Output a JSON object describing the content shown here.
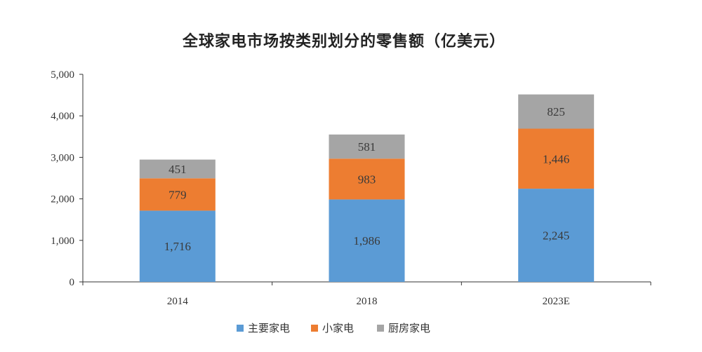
{
  "chart_data": {
    "type": "bar",
    "stacked": true,
    "title": "全球家电市场按类别划分的零售额（亿美元）",
    "categories": [
      "2014",
      "2018",
      "2023E"
    ],
    "series": [
      {
        "name": "主要家电",
        "values": [
          1716,
          1986,
          2245
        ],
        "labels": [
          "1,716",
          "1,986",
          "2,245"
        ],
        "color": "#5B9BD5"
      },
      {
        "name": "小家电",
        "values": [
          779,
          983,
          1446
        ],
        "labels": [
          "779",
          "983",
          "1,446"
        ],
        "color": "#ED7D31"
      },
      {
        "name": "厨房家电",
        "values": [
          451,
          581,
          825
        ],
        "labels": [
          "451",
          "581",
          "825"
        ],
        "color": "#A5A5A5"
      }
    ],
    "y_ticks": [
      {
        "value": 0,
        "label": "0"
      },
      {
        "value": 1000,
        "label": "1,000"
      },
      {
        "value": 2000,
        "label": "2,000"
      },
      {
        "value": 3000,
        "label": "3,000"
      },
      {
        "value": 4000,
        "label": "4,000"
      },
      {
        "value": 5000,
        "label": "5,000"
      }
    ],
    "ylim": [
      0,
      5000
    ],
    "xlabel": "",
    "ylabel": "",
    "grid": false,
    "legend_position": "bottom"
  }
}
